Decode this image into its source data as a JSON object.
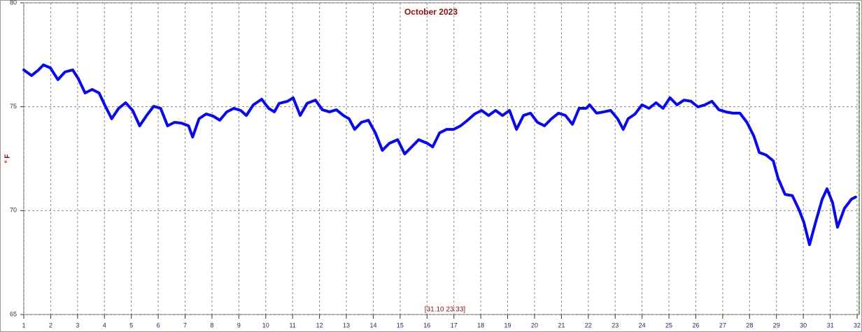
{
  "chart_data": {
    "type": "line",
    "title": "October 2023",
    "y_label": "° F",
    "footer_label": "[31.10 23:33]",
    "color": "#0a0ae6",
    "xlim": [
      1,
      32
    ],
    "xticks": [
      1,
      2,
      3,
      4,
      5,
      6,
      7,
      8,
      9,
      10,
      11,
      12,
      13,
      14,
      15,
      16,
      17,
      18,
      19,
      20,
      21,
      22,
      23,
      24,
      25,
      26,
      27,
      28,
      29,
      30,
      31,
      32
    ],
    "ylim": [
      65,
      80
    ],
    "yticks": [
      65,
      70,
      75,
      80
    ],
    "grid": true,
    "x": [
      1.0,
      1.29,
      1.55,
      1.73,
      1.99,
      2.27,
      2.53,
      2.82,
      3.02,
      3.28,
      3.54,
      3.8,
      4.01,
      4.27,
      4.53,
      4.79,
      5.05,
      5.31,
      5.57,
      5.83,
      6.09,
      6.35,
      6.61,
      6.87,
      7.13,
      7.28,
      7.52,
      7.78,
      8.04,
      8.29,
      8.55,
      8.81,
      9.07,
      9.28,
      9.54,
      9.85,
      10.11,
      10.32,
      10.5,
      10.81,
      11.02,
      11.28,
      11.54,
      11.85,
      12.11,
      12.37,
      12.63,
      12.89,
      13.1,
      13.31,
      13.56,
      13.82,
      14.08,
      14.34,
      14.6,
      14.91,
      15.17,
      15.43,
      15.69,
      16.01,
      16.21,
      16.47,
      16.73,
      16.99,
      17.25,
      17.51,
      17.77,
      18.03,
      18.29,
      18.55,
      18.81,
      19.07,
      19.33,
      19.59,
      19.85,
      20.11,
      20.37,
      20.63,
      20.89,
      21.15,
      21.41,
      21.66,
      21.92,
      22.05,
      22.31,
      22.57,
      22.83,
      23.09,
      23.3,
      23.48,
      23.74,
      24.0,
      24.26,
      24.52,
      24.78,
      25.04,
      25.3,
      25.56,
      25.82,
      26.08,
      26.34,
      26.6,
      26.86,
      27.12,
      27.38,
      27.64,
      27.9,
      28.16,
      28.36,
      28.62,
      28.88,
      29.06,
      29.32,
      29.59,
      29.84,
      30.02,
      30.23,
      30.44,
      30.7,
      30.88,
      31.09,
      31.27,
      31.53,
      31.79,
      31.94
    ],
    "values": [
      76.77,
      76.5,
      76.77,
      77.01,
      76.87,
      76.3,
      76.67,
      76.77,
      76.37,
      75.66,
      75.83,
      75.66,
      75.09,
      74.42,
      74.92,
      75.19,
      74.82,
      74.08,
      74.58,
      75.02,
      74.92,
      74.08,
      74.25,
      74.21,
      74.08,
      73.54,
      74.42,
      74.65,
      74.55,
      74.35,
      74.75,
      74.92,
      74.82,
      74.58,
      75.09,
      75.36,
      74.92,
      74.75,
      75.16,
      75.26,
      75.43,
      74.58,
      75.16,
      75.32,
      74.85,
      74.75,
      74.85,
      74.58,
      74.42,
      73.91,
      74.25,
      74.35,
      73.74,
      72.9,
      73.24,
      73.41,
      72.73,
      73.07,
      73.41,
      73.24,
      73.07,
      73.74,
      73.91,
      73.91,
      74.08,
      74.35,
      74.65,
      74.82,
      74.58,
      74.82,
      74.58,
      74.82,
      73.91,
      74.58,
      74.69,
      74.25,
      74.08,
      74.42,
      74.69,
      74.58,
      74.15,
      74.92,
      74.92,
      75.09,
      74.69,
      74.75,
      74.82,
      74.42,
      73.91,
      74.42,
      74.65,
      75.09,
      74.92,
      75.19,
      74.92,
      75.43,
      75.09,
      75.32,
      75.26,
      74.99,
      75.09,
      75.26,
      74.85,
      74.75,
      74.69,
      74.69,
      74.25,
      73.58,
      72.8,
      72.67,
      72.4,
      71.56,
      70.78,
      70.72,
      70.04,
      69.44,
      68.36,
      69.37,
      70.55,
      71.05,
      70.38,
      69.2,
      70.11,
      70.55,
      70.65
    ]
  }
}
